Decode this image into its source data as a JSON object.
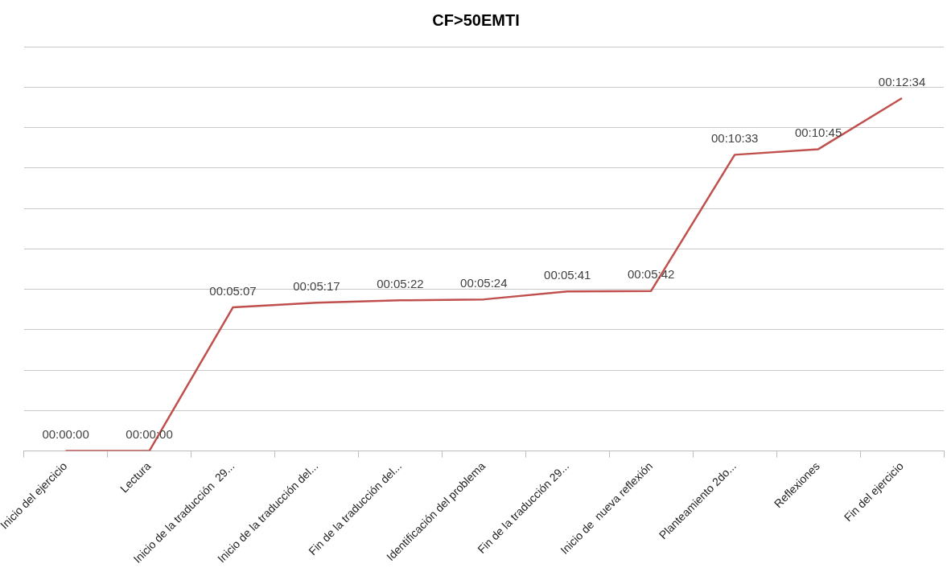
{
  "chart_data": {
    "type": "line",
    "title": "CF>50EMTI",
    "categories": [
      "Inicio del ejercicio",
      "Lectura",
      "Inicio de la traducción  29...",
      "Inicio de la traducción del...",
      "Fin de la traducción del...",
      "Identificación del problema",
      "Fin de la traducción 29...",
      "Inicio de  nueva reflexión",
      "Planteamiento 2do...",
      "Reflexiones",
      "Fin del ejercicio"
    ],
    "series": [
      {
        "color": "#c0504d",
        "values": [
          0,
          0,
          307,
          317,
          322,
          324,
          341,
          342,
          633,
          645,
          754
        ],
        "value_labels": [
          "00:00:00",
          "00:00:00",
          "00:05:07",
          "00:05:17",
          "00:05:22",
          "00:05:24",
          "00:05:41",
          "00:05:42",
          "00:10:33",
          "00:10:45",
          "00:12:34"
        ]
      }
    ],
    "ylim": [
      0,
      864
    ],
    "yticks": [
      {
        "value": 0,
        "label": null
      },
      {
        "value": 86.4,
        "label": null
      },
      {
        "value": 172.8,
        "label": null
      },
      {
        "value": 259.2,
        "label": null
      },
      {
        "value": 345.6,
        "label": null
      },
      {
        "value": 432,
        "label": null
      },
      {
        "value": 518.4,
        "label": null
      },
      {
        "value": 604.8,
        "label": null
      },
      {
        "value": 691.2,
        "label": null
      },
      {
        "value": 777.6,
        "label": null
      },
      {
        "value": 864,
        "label": null
      }
    ],
    "grid": "y",
    "tick_labels": "x",
    "marker": "none",
    "line_style": "solid",
    "legend": false
  }
}
